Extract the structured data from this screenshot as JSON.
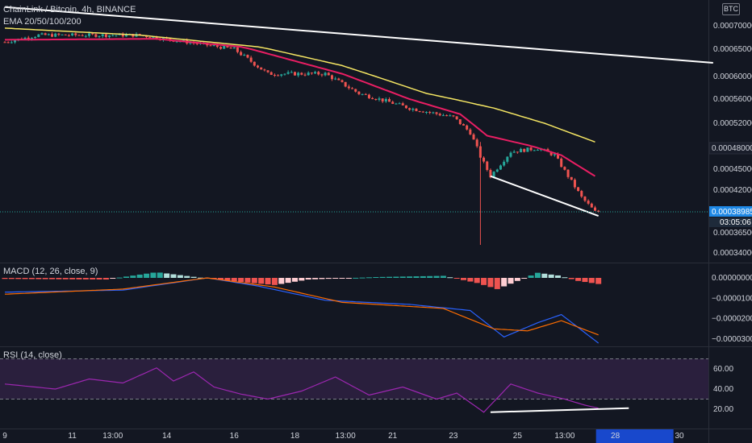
{
  "header": {
    "symbol_line": "ChainLink / Bitcoin, 4h, BINANCE",
    "ema_line": "EMA 20/50/100/200",
    "currency_button": "BTC",
    "macd_line": "MACD (12, 26, close, 9)",
    "rsi_line": "RSI (14, close)"
  },
  "price_tags": {
    "last_price": "0.00038985",
    "countdown": "03:05:06"
  },
  "colors": {
    "background": "#131722",
    "up": "#26a69a",
    "down": "#ef5350",
    "ema_fast": "#e91e63",
    "ema_slow": "#f5e663",
    "trendline": "#ffffff",
    "macd_line": "#2962ff",
    "signal_line": "#ff6d00",
    "rsi_line": "#9c27b0",
    "rsi_band": "#2a1f3d",
    "last_price_tag": "#1e88e5",
    "countdown_tag": "#1e2a3a",
    "highlight_tag": "#1848cc"
  },
  "chart_data": [
    {
      "type": "candlestick",
      "title": "ChainLink / Bitcoin, 4h, BINANCE",
      "x_ticks": [
        "9",
        "11",
        "13:00",
        "14",
        "16",
        "18",
        "13:00",
        "21",
        "23",
        "25",
        "13:00",
        "28",
        "30"
      ],
      "x_tick_pos": [
        0,
        20,
        32,
        48,
        68,
        86,
        101,
        115,
        133,
        152,
        166,
        181,
        200
      ],
      "y_ticks": [
        "0.00070000",
        "0.00065000",
        "0.00060000",
        "0.00056000",
        "0.00052000",
        "0.00048000",
        "0.00045000",
        "0.00042000",
        "0.00038985",
        "0.00036500",
        "0.00034000"
      ],
      "y_tick_values": [
        0.0007,
        0.00065,
        0.0006,
        0.00056,
        0.00052,
        0.00048,
        0.00045,
        0.00042,
        0.00038985,
        0.000365,
        0.00034
      ],
      "last_price": 0.00038985,
      "key_points": [
        {
          "bar": 0,
          "price": 0.000665
        },
        {
          "bar": 10,
          "price": 0.00068
        },
        {
          "bar": 40,
          "price": 0.00068
        },
        {
          "bar": 68,
          "price": 0.00065
        },
        {
          "bar": 78,
          "price": 0.000605
        },
        {
          "bar": 95,
          "price": 0.000605
        },
        {
          "bar": 105,
          "price": 0.00057
        },
        {
          "bar": 120,
          "price": 0.000545
        },
        {
          "bar": 133,
          "price": 0.00053
        },
        {
          "bar": 138,
          "price": 0.000505
        },
        {
          "bar": 141,
          "price": 0.000468
        },
        {
          "bar": 144,
          "price": 0.00044
        },
        {
          "bar": 150,
          "price": 0.000475
        },
        {
          "bar": 158,
          "price": 0.00048
        },
        {
          "bar": 163,
          "price": 0.00047
        },
        {
          "bar": 167,
          "price": 0.00044
        },
        {
          "bar": 171,
          "price": 0.00041
        },
        {
          "bar": 175,
          "price": 0.00039
        }
      ],
      "spike_low": {
        "bar": 141,
        "price": 0.00035
      },
      "ema_fast_points": [
        {
          "bar": 0,
          "price": 0.00067
        },
        {
          "bar": 45,
          "price": 0.000672
        },
        {
          "bar": 70,
          "price": 0.000655
        },
        {
          "bar": 100,
          "price": 0.000605
        },
        {
          "bar": 120,
          "price": 0.00056
        },
        {
          "bar": 135,
          "price": 0.000535
        },
        {
          "bar": 143,
          "price": 0.0005
        },
        {
          "bar": 155,
          "price": 0.000485
        },
        {
          "bar": 165,
          "price": 0.00047
        },
        {
          "bar": 175,
          "price": 0.00044
        }
      ],
      "ema_slow_points": [
        {
          "bar": 0,
          "price": 0.000695
        },
        {
          "bar": 40,
          "price": 0.00068
        },
        {
          "bar": 75,
          "price": 0.000655
        },
        {
          "bar": 100,
          "price": 0.00062
        },
        {
          "bar": 125,
          "price": 0.00057
        },
        {
          "bar": 145,
          "price": 0.000545
        },
        {
          "bar": 160,
          "price": 0.00052
        },
        {
          "bar": 175,
          "price": 0.00049
        }
      ],
      "trendlines": [
        {
          "from": {
            "bar": 0,
            "price": 0.00074
          },
          "to": {
            "bar": 210,
            "price": 0.000625
          }
        },
        {
          "from": {
            "bar": 144,
            "price": 0.00044
          },
          "to": {
            "bar": 176,
            "price": 0.000385
          }
        }
      ]
    },
    {
      "type": "macd",
      "title": "MACD (12, 26, close, 9)",
      "y_ticks": [
        "0.00000000",
        "−0.00001000",
        "−0.00002000",
        "−0.00003000"
      ],
      "y_tick_values": [
        0,
        -1e-05,
        -2e-05,
        -3e-05
      ],
      "histogram_points": [
        {
          "bar": 0,
          "value": -5e-07
        },
        {
          "bar": 30,
          "value": -8e-07
        },
        {
          "bar": 45,
          "value": 2.8e-06
        },
        {
          "bar": 60,
          "value": -3e-07
        },
        {
          "bar": 70,
          "value": -2e-06
        },
        {
          "bar": 80,
          "value": -3.5e-06
        },
        {
          "bar": 90,
          "value": -8e-07
        },
        {
          "bar": 110,
          "value": 4e-07
        },
        {
          "bar": 130,
          "value": 1e-06
        },
        {
          "bar": 140,
          "value": -2.5e-06
        },
        {
          "bar": 146,
          "value": -5.5e-06
        },
        {
          "bar": 152,
          "value": -1.5e-06
        },
        {
          "bar": 158,
          "value": 2.5e-06
        },
        {
          "bar": 164,
          "value": 1.2e-06
        },
        {
          "bar": 170,
          "value": -1.5e-06
        },
        {
          "bar": 176,
          "value": -3e-06
        }
      ],
      "macd_points": [
        {
          "bar": 0,
          "value": -7e-06
        },
        {
          "bar": 35,
          "value": -6e-06
        },
        {
          "bar": 60,
          "value": 0.0
        },
        {
          "bar": 75,
          "value": -4e-06
        },
        {
          "bar": 95,
          "value": -1.1e-05
        },
        {
          "bar": 120,
          "value": -1.3e-05
        },
        {
          "bar": 138,
          "value": -1.6e-05
        },
        {
          "bar": 148,
          "value": -2.9e-05
        },
        {
          "bar": 158,
          "value": -2.2e-05
        },
        {
          "bar": 165,
          "value": -1.8e-05
        },
        {
          "bar": 176,
          "value": -3.2e-05
        }
      ],
      "signal_points": [
        {
          "bar": 0,
          "value": -8e-06
        },
        {
          "bar": 35,
          "value": -5.5e-06
        },
        {
          "bar": 60,
          "value": 0.0
        },
        {
          "bar": 80,
          "value": -4.5e-06
        },
        {
          "bar": 100,
          "value": -1.2e-05
        },
        {
          "bar": 130,
          "value": -1.5e-05
        },
        {
          "bar": 145,
          "value": -2.5e-05
        },
        {
          "bar": 155,
          "value": -2.6e-05
        },
        {
          "bar": 165,
          "value": -2.1e-05
        },
        {
          "bar": 176,
          "value": -2.8e-05
        }
      ]
    },
    {
      "type": "rsi",
      "title": "RSI (14, close)",
      "y_ticks": [
        "60.00",
        "40.00",
        "20.00"
      ],
      "y_tick_values": [
        60,
        40,
        20
      ],
      "band": [
        30,
        70
      ],
      "rsi_points": [
        {
          "bar": 0,
          "value": 45
        },
        {
          "bar": 15,
          "value": 40
        },
        {
          "bar": 25,
          "value": 50
        },
        {
          "bar": 35,
          "value": 46
        },
        {
          "bar": 45,
          "value": 61
        },
        {
          "bar": 50,
          "value": 48
        },
        {
          "bar": 56,
          "value": 57
        },
        {
          "bar": 62,
          "value": 42
        },
        {
          "bar": 70,
          "value": 35
        },
        {
          "bar": 78,
          "value": 30
        },
        {
          "bar": 88,
          "value": 38
        },
        {
          "bar": 98,
          "value": 52
        },
        {
          "bar": 108,
          "value": 34
        },
        {
          "bar": 118,
          "value": 42
        },
        {
          "bar": 128,
          "value": 30
        },
        {
          "bar": 134,
          "value": 36
        },
        {
          "bar": 142,
          "value": 17
        },
        {
          "bar": 150,
          "value": 45
        },
        {
          "bar": 158,
          "value": 36
        },
        {
          "bar": 166,
          "value": 30
        },
        {
          "bar": 172,
          "value": 24
        },
        {
          "bar": 176,
          "value": 21
        }
      ],
      "trendline": {
        "from": {
          "bar": 144,
          "value": 17
        },
        "to": {
          "bar": 185,
          "value": 21
        }
      }
    }
  ]
}
